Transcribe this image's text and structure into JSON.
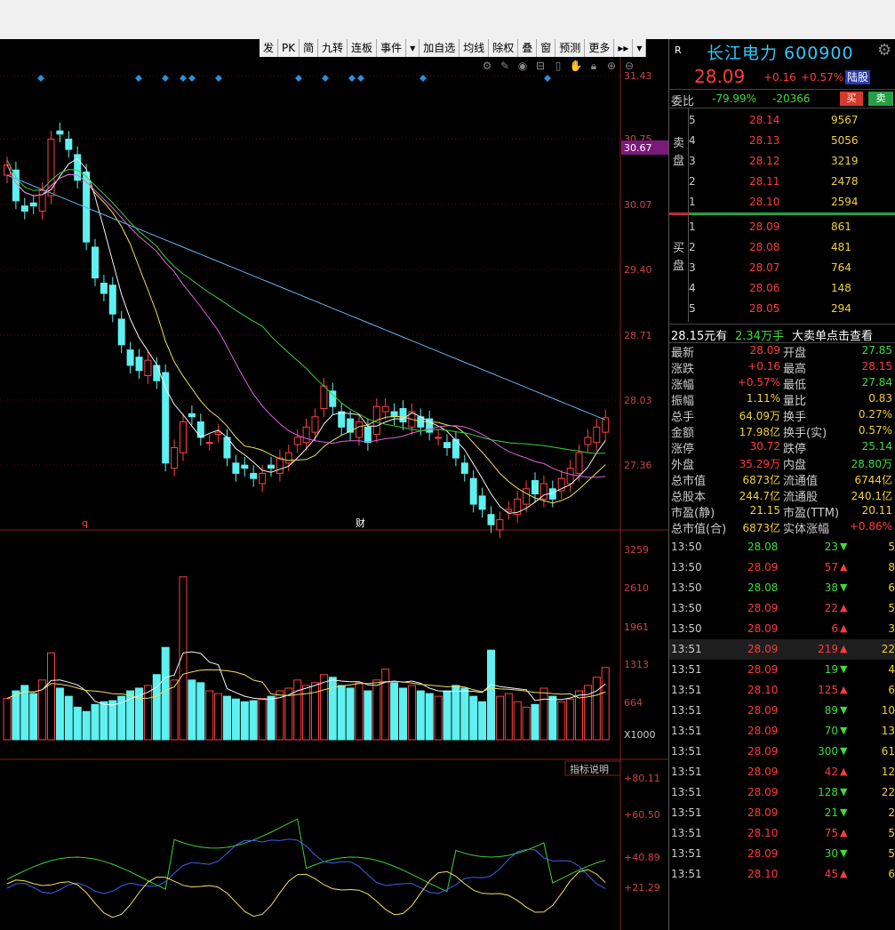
{
  "toolbar": {
    "items": [
      "发",
      "PK",
      "简",
      "九转",
      "连板",
      "事件",
      "▾",
      "加自选",
      "均线",
      "除权",
      "叠",
      "窗",
      "预测",
      "更多",
      "▸▸",
      "▾"
    ]
  },
  "chart": {
    "price_axis": [
      "31.43",
      "30.75",
      "30.07",
      "29.40",
      "28.71",
      "28.03",
      "27.36"
    ],
    "current_price_tag": "30.67",
    "marker_q": "q",
    "marker_cai": "财",
    "vol_axis": [
      "3259",
      "2610",
      "1961",
      "1313",
      "664"
    ],
    "vol_unit": "X1000",
    "ind_btn": "指标说明",
    "ind_axis": [
      "+80.11",
      "+60.50",
      "+40.89",
      "+21.29"
    ]
  },
  "chart_data": {
    "type": "candlestick",
    "price_range": [
      27.0,
      31.6
    ]
  },
  "stock": {
    "badge": "R",
    "name": "长江电力 600900",
    "price": "28.09",
    "change": "+0.16",
    "change_pct": "+0.57%",
    "tag": "陆股"
  },
  "weibi": {
    "label": "委比",
    "pct": "-79.99%",
    "diff": "-20366",
    "buy": "买",
    "sell": "卖"
  },
  "sell_label": "卖\n盘",
  "buy_label": "买\n盘",
  "ask": [
    {
      "lv": "5",
      "price": "28.14",
      "qty": "9567"
    },
    {
      "lv": "4",
      "price": "28.13",
      "qty": "5056"
    },
    {
      "lv": "3",
      "price": "28.12",
      "qty": "3219"
    },
    {
      "lv": "2",
      "price": "28.11",
      "qty": "2478"
    },
    {
      "lv": "1",
      "price": "28.10",
      "qty": "2594"
    }
  ],
  "bid": [
    {
      "lv": "1",
      "price": "28.09",
      "qty": "861"
    },
    {
      "lv": "2",
      "price": "28.08",
      "qty": "481"
    },
    {
      "lv": "3",
      "price": "28.07",
      "qty": "764"
    },
    {
      "lv": "4",
      "price": "28.06",
      "qty": "148"
    },
    {
      "lv": "5",
      "price": "28.05",
      "qty": "294"
    }
  ],
  "bigorder": {
    "price": "28.15元有",
    "amount": "2.34万手",
    "text": "大卖单点击查看"
  },
  "stats": [
    {
      "l1": "最新",
      "v1": "28.09",
      "c1": "#ff3b3b",
      "l2": "开盘",
      "v2": "27.85",
      "c2": "#3cdc3c"
    },
    {
      "l1": "涨跌",
      "v1": "+0.16",
      "c1": "#ff3b3b",
      "l2": "最高",
      "v2": "28.15",
      "c2": "#ff3b3b"
    },
    {
      "l1": "涨幅",
      "v1": "+0.57%",
      "c1": "#ff3b3b",
      "l2": "最低",
      "v2": "27.84",
      "c2": "#3cdc3c"
    },
    {
      "l1": "振幅",
      "v1": "1.11%",
      "c1": "#f0d040",
      "l2": "量比",
      "v2": "0.83",
      "c2": "#f0d040"
    },
    {
      "l1": "总手",
      "v1": "64.09万",
      "c1": "#f0d040",
      "l2": "换手",
      "v2": "0.27%",
      "c2": "#f0d040"
    },
    {
      "l1": "金额",
      "v1": "17.98亿",
      "c1": "#f0d040",
      "l2": "换手(实)",
      "v2": "0.57%",
      "c2": "#f0d040"
    },
    {
      "l1": "涨停",
      "v1": "30.72",
      "c1": "#ff3b3b",
      "l2": "跌停",
      "v2": "25.14",
      "c2": "#3cdc3c"
    },
    {
      "l1": "外盘",
      "v1": "35.29万",
      "c1": "#ff3b3b",
      "l2": "内盘",
      "v2": "28.80万",
      "c2": "#3cdc3c"
    },
    {
      "l1": "总市值",
      "v1": "6873亿",
      "c1": "#f0d040",
      "l2": "流通值",
      "v2": "6744亿",
      "c2": "#f0d040"
    },
    {
      "l1": "总股本",
      "v1": "244.7亿",
      "c1": "#f0d040",
      "l2": "流通股",
      "v2": "240.1亿",
      "c2": "#f0d040"
    },
    {
      "l1": "市盈(静)",
      "v1": "21.15",
      "c1": "#f0d040",
      "l2": "市盈(TTM)",
      "v2": "20.11",
      "c2": "#f0d040"
    },
    {
      "l1": "总市值(合)",
      "v1": "6873亿",
      "c1": "#f0d040",
      "l2": "实体涨幅",
      "v2": "+0.86%",
      "c2": "#ff3b3b"
    }
  ],
  "ticks": [
    {
      "t": "13:50",
      "p": "28.08",
      "pc": "#3cdc3c",
      "v": "23",
      "vc": "#3cdc3c",
      "d": "down",
      "n": "5"
    },
    {
      "t": "13:50",
      "p": "28.09",
      "pc": "#ff3b3b",
      "v": "57",
      "vc": "#ff3b3b",
      "d": "up",
      "n": "8"
    },
    {
      "t": "13:50",
      "p": "28.08",
      "pc": "#3cdc3c",
      "v": "38",
      "vc": "#3cdc3c",
      "d": "down",
      "n": "6"
    },
    {
      "t": "13:50",
      "p": "28.09",
      "pc": "#ff3b3b",
      "v": "22",
      "vc": "#ff3b3b",
      "d": "up",
      "n": "5"
    },
    {
      "t": "13:50",
      "p": "28.09",
      "pc": "#ff3b3b",
      "v": "6",
      "vc": "#ff3b3b",
      "d": "up",
      "n": "3"
    },
    {
      "t": "13:51",
      "p": "28.09",
      "pc": "#ff3b3b",
      "v": "219",
      "vc": "#ff3b3b",
      "d": "up",
      "n": "22",
      "hl": true
    },
    {
      "t": "13:51",
      "p": "28.09",
      "pc": "#ff3b3b",
      "v": "19",
      "vc": "#3cdc3c",
      "d": "down",
      "n": "4"
    },
    {
      "t": "13:51",
      "p": "28.10",
      "pc": "#ff3b3b",
      "v": "125",
      "vc": "#ff3b3b",
      "d": "up",
      "n": "6"
    },
    {
      "t": "13:51",
      "p": "28.09",
      "pc": "#ff3b3b",
      "v": "89",
      "vc": "#3cdc3c",
      "d": "down",
      "n": "10"
    },
    {
      "t": "13:51",
      "p": "28.09",
      "pc": "#ff3b3b",
      "v": "70",
      "vc": "#3cdc3c",
      "d": "down",
      "n": "13"
    },
    {
      "t": "13:51",
      "p": "28.09",
      "pc": "#ff3b3b",
      "v": "300",
      "vc": "#3cdc3c",
      "d": "down",
      "n": "61"
    },
    {
      "t": "13:51",
      "p": "28.09",
      "pc": "#ff3b3b",
      "v": "42",
      "vc": "#ff3b3b",
      "d": "up",
      "n": "12"
    },
    {
      "t": "13:51",
      "p": "28.09",
      "pc": "#ff3b3b",
      "v": "128",
      "vc": "#3cdc3c",
      "d": "down",
      "n": "22"
    },
    {
      "t": "13:51",
      "p": "28.09",
      "pc": "#ff3b3b",
      "v": "21",
      "vc": "#3cdc3c",
      "d": "down",
      "n": "2"
    },
    {
      "t": "13:51",
      "p": "28.10",
      "pc": "#ff3b3b",
      "v": "75",
      "vc": "#ff3b3b",
      "d": "up",
      "n": "5"
    },
    {
      "t": "13:51",
      "p": "28.09",
      "pc": "#ff3b3b",
      "v": "30",
      "vc": "#3cdc3c",
      "d": "down",
      "n": "5"
    },
    {
      "t": "13:51",
      "p": "28.10",
      "pc": "#ff3b3b",
      "v": "45",
      "vc": "#ff3b3b",
      "d": "up",
      "n": "6"
    }
  ]
}
